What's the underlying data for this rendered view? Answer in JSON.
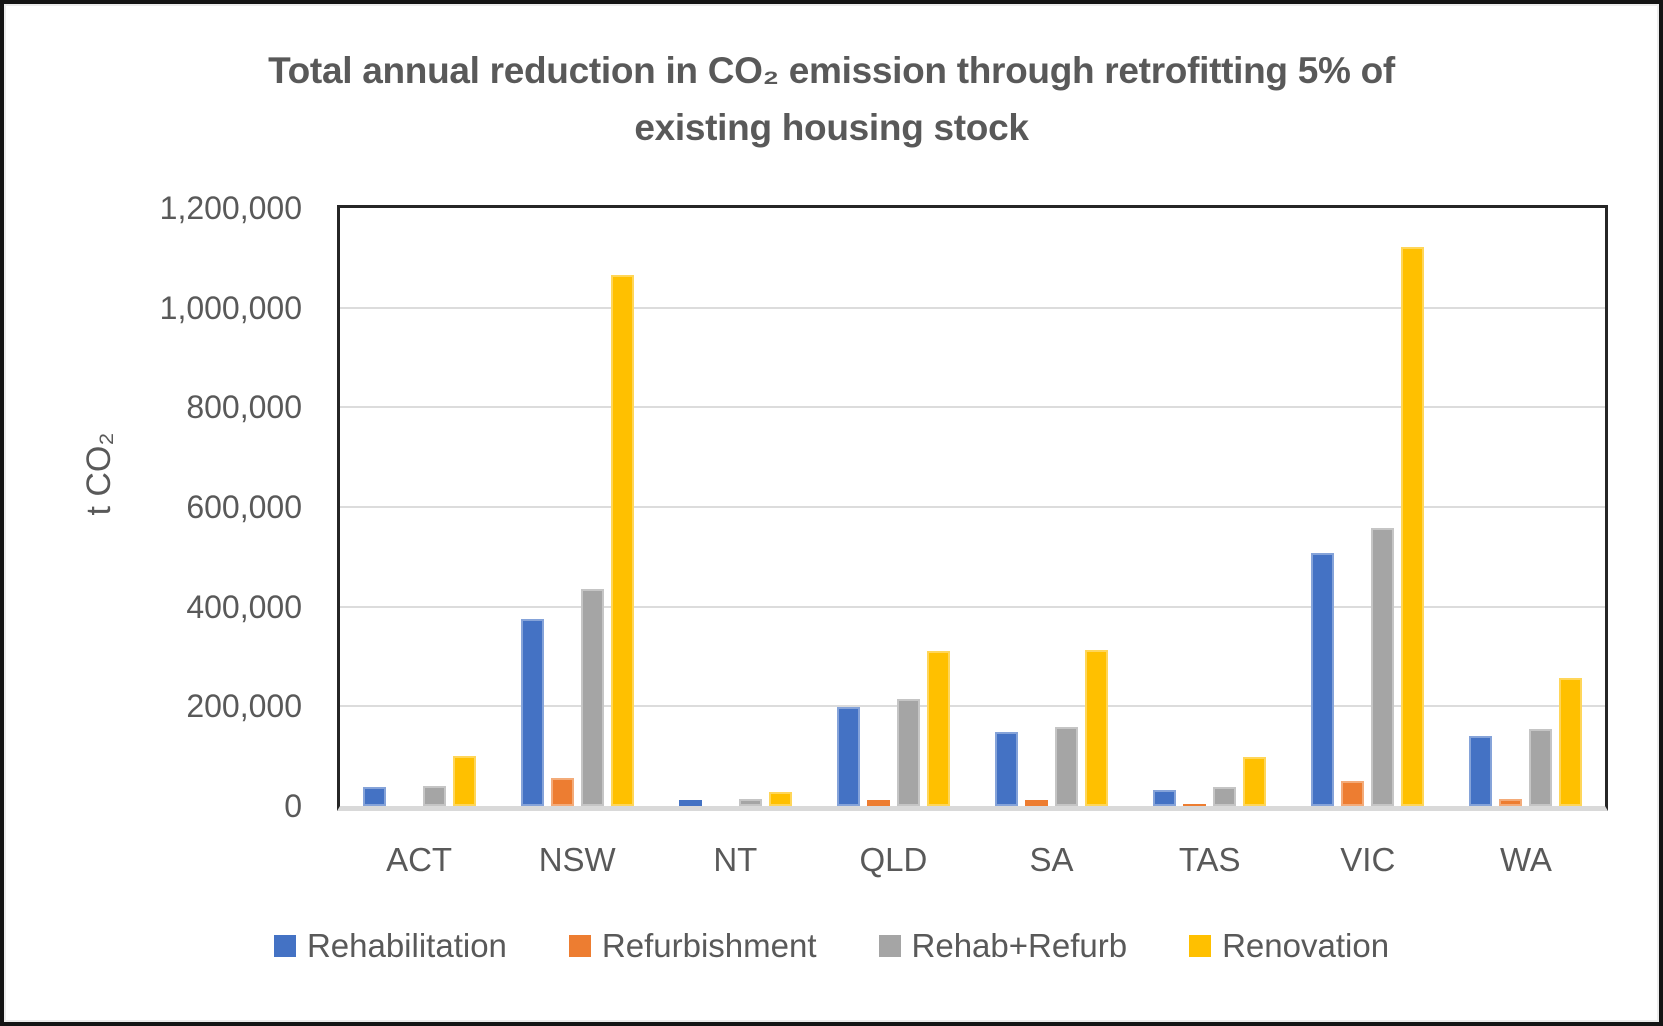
{
  "chart_data": {
    "type": "bar",
    "title": "Total annual reduction in CO₂ emission through retrofitting 5% of existing housing stock",
    "title_lines": [
      "Total annual reduction in CO₂ emission through retrofitting 5% of",
      "existing housing stock"
    ],
    "xlabel": "",
    "ylabel": "t CO₂",
    "ylim": [
      0,
      1200000
    ],
    "grid": true,
    "legend_position": "bottom",
    "categories": [
      "ACT",
      "NSW",
      "NT",
      "QLD",
      "SA",
      "TAS",
      "VIC",
      "WA"
    ],
    "series": [
      {
        "name": "Rehabilitation",
        "color": "#4472C4",
        "values": [
          38000,
          375000,
          12000,
          199000,
          148000,
          32000,
          508000,
          141000
        ]
      },
      {
        "name": "Refurbishment",
        "color": "#ED7D31",
        "values": [
          0,
          57000,
          0,
          12000,
          12000,
          5000,
          50000,
          14000
        ]
      },
      {
        "name": "Rehab+Refurb",
        "color": "#A5A5A5",
        "values": [
          40000,
          436000,
          14000,
          214000,
          159000,
          38000,
          558000,
          154000
        ]
      },
      {
        "name": "Renovation",
        "color": "#FFC000",
        "values": [
          101000,
          1065000,
          29000,
          311000,
          314000,
          98000,
          1122000,
          257000
        ]
      }
    ],
    "y_ticks": [
      {
        "value": 0,
        "label": "0"
      },
      {
        "value": 200000,
        "label": "200,000"
      },
      {
        "value": 400000,
        "label": "400,000"
      },
      {
        "value": 600000,
        "label": "600,000"
      },
      {
        "value": 800000,
        "label": "800,000"
      },
      {
        "value": 1000000,
        "label": "1,000,000"
      },
      {
        "value": 1200000,
        "label": "1,200,000"
      }
    ],
    "colors": {
      "text": "#595959",
      "gridline": "#DCDCDC",
      "axis_border": "#262626",
      "baseline": "#D9D9D9"
    }
  }
}
